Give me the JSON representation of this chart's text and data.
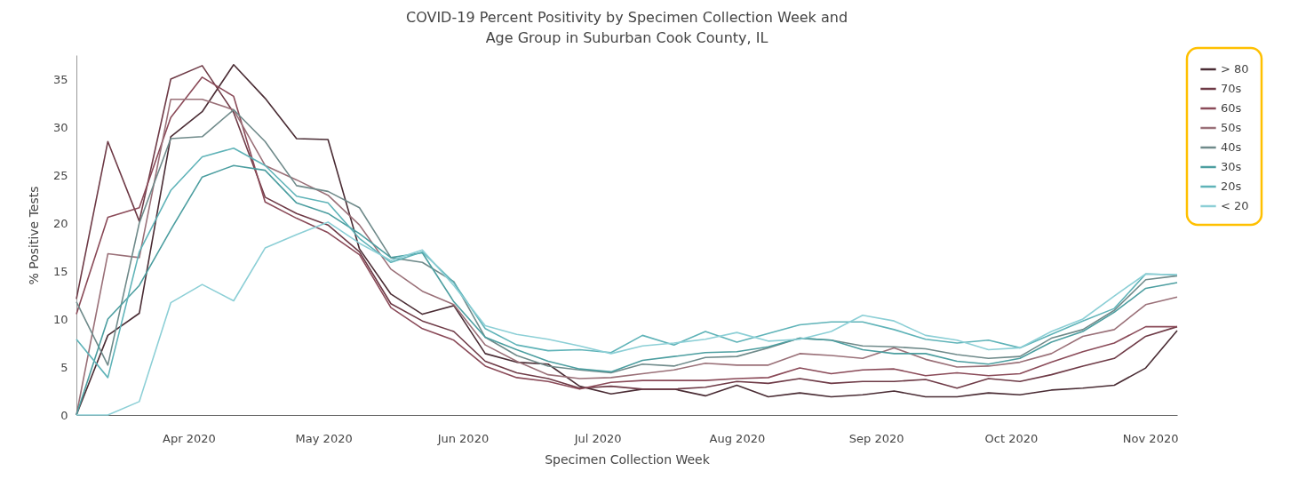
{
  "chart_data": {
    "type": "line",
    "title": "COVID-19 Percent Positivity by Specimen Collection Week and\nAge Group in Suburban Cook County, IL",
    "xlabel": "Specimen Collection Week",
    "ylabel": "% Positive Tests",
    "x": [
      "2020-03-07",
      "2020-03-14",
      "2020-03-21",
      "2020-03-28",
      "2020-04-04",
      "2020-04-11",
      "2020-04-18",
      "2020-04-25",
      "2020-05-02",
      "2020-05-09",
      "2020-05-16",
      "2020-05-23",
      "2020-05-30",
      "2020-06-06",
      "2020-06-13",
      "2020-06-20",
      "2020-06-27",
      "2020-07-04",
      "2020-07-11",
      "2020-07-18",
      "2020-07-25",
      "2020-08-01",
      "2020-08-08",
      "2020-08-15",
      "2020-08-22",
      "2020-08-29",
      "2020-09-05",
      "2020-09-12",
      "2020-09-19",
      "2020-09-26",
      "2020-10-03",
      "2020-10-10",
      "2020-10-17",
      "2020-10-24",
      "2020-10-31",
      "2020-11-07"
    ],
    "series": [
      {
        "name": "> 80",
        "color": "#4a2c34",
        "values": [
          0,
          8.3,
          10.6,
          29,
          31.6,
          36.5,
          33,
          28.8,
          28.7,
          17.3,
          12.6,
          10.5,
          11.4,
          6.4,
          5.5,
          5.3,
          3.0,
          2.2,
          2.7,
          2.7,
          2.0,
          3.1,
          1.9,
          2.3,
          1.9,
          2.1,
          2.5,
          1.9,
          1.9,
          2.3,
          2.1,
          2.6,
          2.8,
          3.1,
          4.9,
          8.8
        ]
      },
      {
        "name": "70s",
        "color": "#6e3a46",
        "values": [
          12.1,
          28.5,
          20.2,
          35,
          36.4,
          31.5,
          22.7,
          21.0,
          19.8,
          17.0,
          11.6,
          9.8,
          8.7,
          5.6,
          4.4,
          3.8,
          2.8,
          3.0,
          2.7,
          2.7,
          2.9,
          3.5,
          3.3,
          3.8,
          3.3,
          3.5,
          3.5,
          3.7,
          2.8,
          3.8,
          3.5,
          4.2,
          5.1,
          5.9,
          8.2,
          9.2
        ]
      },
      {
        "name": "60s",
        "color": "#8a4a58",
        "values": [
          10.5,
          20.6,
          21.6,
          31,
          35.2,
          33.2,
          22.2,
          20.5,
          19.0,
          16.7,
          11.2,
          9.0,
          7.8,
          5.1,
          3.9,
          3.5,
          2.7,
          3.4,
          3.6,
          3.6,
          3.6,
          3.8,
          3.9,
          4.9,
          4.3,
          4.7,
          4.8,
          4.1,
          4.4,
          4.1,
          4.3,
          5.5,
          6.6,
          7.5,
          9.2,
          9.2
        ]
      },
      {
        "name": "50s",
        "color": "#9a7078",
        "values": [
          0,
          16.8,
          16.4,
          32.9,
          32.9,
          31.8,
          26,
          24.5,
          22.9,
          19.8,
          15.2,
          12.9,
          11.5,
          7.3,
          5.6,
          4.2,
          3.8,
          3.9,
          4.3,
          4.7,
          5.4,
          5.2,
          5.2,
          6.4,
          6.2,
          5.9,
          7.0,
          5.8,
          5.0,
          5.1,
          5.5,
          6.4,
          8.2,
          8.9,
          11.5,
          12.3
        ]
      },
      {
        "name": "40s",
        "color": "#6f8a8a",
        "values": [
          11.8,
          5.2,
          20,
          28.8,
          29,
          31.8,
          28.5,
          23.9,
          23.3,
          21.6,
          16.4,
          15.9,
          13.9,
          8.1,
          6.2,
          5.1,
          4.7,
          4.4,
          5.3,
          5.1,
          6.0,
          6.1,
          7.0,
          8.0,
          7.8,
          7.2,
          7.1,
          6.9,
          6.3,
          5.9,
          6.1,
          8.0,
          8.9,
          10.9,
          14.1,
          14.5
        ]
      },
      {
        "name": "30s",
        "color": "#4c9ea0",
        "values": [
          0,
          10,
          13.5,
          19.3,
          24.8,
          26,
          25.5,
          22.1,
          21.0,
          18.9,
          16.4,
          16.9,
          11.8,
          8.1,
          6.8,
          5.6,
          4.8,
          4.5,
          5.7,
          6.1,
          6.5,
          6.6,
          7.1,
          8.0,
          7.8,
          6.8,
          6.4,
          6.4,
          5.6,
          5.3,
          5.9,
          7.6,
          8.7,
          10.7,
          13.2,
          13.8
        ]
      },
      {
        "name": "20s",
        "color": "#5fb3b8",
        "values": [
          7.9,
          3.9,
          17,
          23.4,
          26.9,
          27.8,
          26,
          22.8,
          22.1,
          18.4,
          15.9,
          17.0,
          13.8,
          9.0,
          7.3,
          6.7,
          6.8,
          6.5,
          8.3,
          7.3,
          8.7,
          7.6,
          8.5,
          9.4,
          9.7,
          9.7,
          8.9,
          7.9,
          7.5,
          7.8,
          7.0,
          8.4,
          9.8,
          11.1,
          14.7,
          14.6
        ]
      },
      {
        "name": "< 20",
        "color": "#8ccfd6",
        "values": [
          0,
          0,
          1.4,
          11.7,
          13.6,
          11.9,
          17.4,
          18.8,
          20.1,
          17.9,
          16.1,
          17.2,
          13.5,
          9.3,
          8.4,
          7.9,
          7.2,
          6.4,
          7.2,
          7.5,
          7.9,
          8.6,
          7.7,
          7.9,
          8.7,
          10.4,
          9.8,
          8.3,
          7.8,
          6.8,
          7.0,
          8.7,
          10.0,
          12.4,
          14.7,
          14.6
        ]
      }
    ],
    "xlim": [
      "2020-03-07",
      "2020-11-07"
    ],
    "xticks": [
      {
        "value": "2020-04-01",
        "label": "Apr 2020"
      },
      {
        "value": "2020-05-01",
        "label": "May 2020"
      },
      {
        "value": "2020-06-01",
        "label": "Jun 2020"
      },
      {
        "value": "2020-07-01",
        "label": "Jul 2020"
      },
      {
        "value": "2020-08-01",
        "label": "Aug 2020"
      },
      {
        "value": "2020-09-01",
        "label": "Sep 2020"
      },
      {
        "value": "2020-10-01",
        "label": "Oct 2020"
      },
      {
        "value": "2020-11-01",
        "label": "Nov 2020"
      }
    ],
    "ylim": [
      0,
      37.5
    ],
    "yticks": [
      0,
      5,
      10,
      15,
      20,
      25,
      30,
      35
    ],
    "grid": false,
    "legend": "top right",
    "marker": "none",
    "line_style": "solid"
  }
}
